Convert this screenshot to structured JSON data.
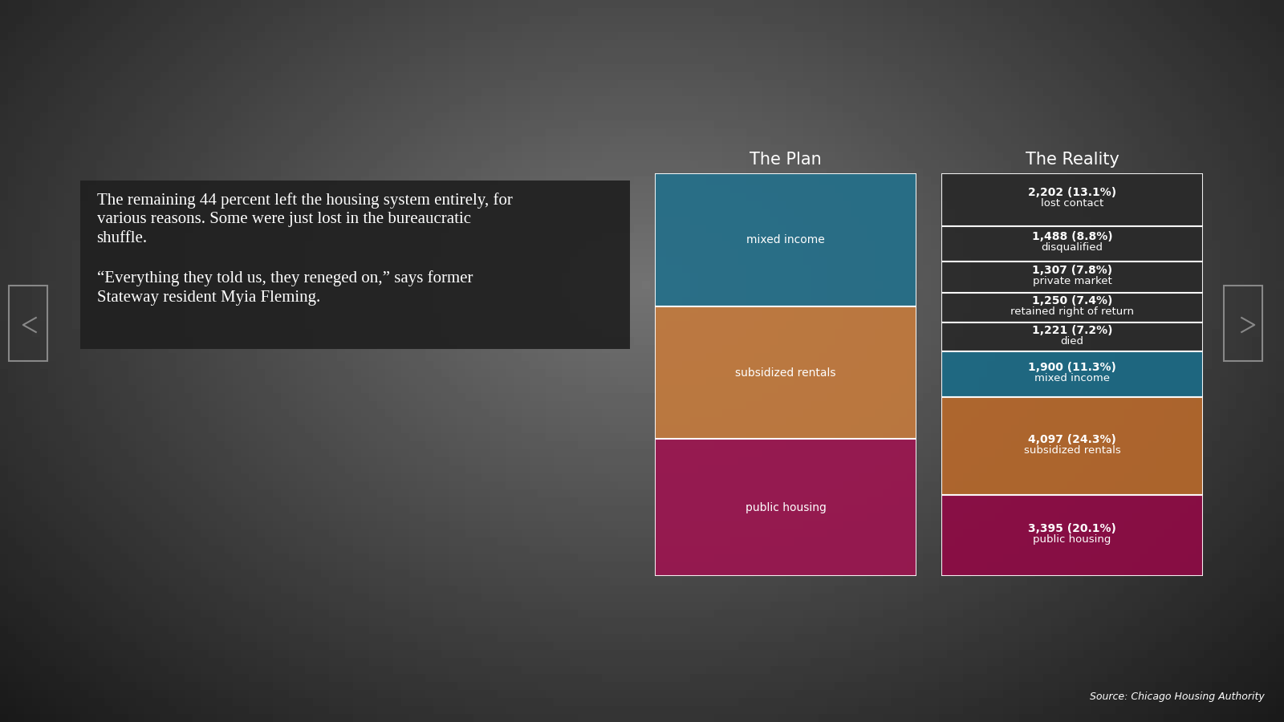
{
  "text_box": {
    "paragraphs": [
      "The remaining 44 percent left the housing system entirely, for various reasons. Some were just lost in the bureaucratic shuffle.",
      "“Everything they told us, they reneged on,” says former Stateway resident Myia Fleming."
    ]
  },
  "chart_data": [
    {
      "type": "bar",
      "stacked": true,
      "title": "The Plan",
      "categories": [
        "mixed income",
        "subsidized rentals",
        "public housing"
      ],
      "values": [
        33,
        33,
        34
      ],
      "colors": [
        "#256f89",
        "#c27a3e",
        "#9b1650"
      ],
      "ylim": [
        0,
        100
      ],
      "tick_labels": false,
      "data_labels": false
    },
    {
      "type": "bar",
      "stacked": true,
      "title": "The Reality",
      "categories": [
        "lost contact",
        "disqualified",
        "private market",
        "retained right of return",
        "died",
        "mixed income",
        "subsidized rentals",
        "public housing"
      ],
      "values": [
        2202,
        1488,
        1307,
        1250,
        1221,
        1900,
        4097,
        3395
      ],
      "value_labels": [
        "2,202 (13.1%)",
        "1,488 (8.8%)",
        "1,307 (7.8%)",
        "1,250 (7.4%)",
        "1,221 (7.2%)",
        "1,900 (11.3%)",
        "4,097 (24.3%)",
        "3,395 (20.1%)"
      ],
      "colors": [
        "#2a2a2a",
        "#2a2a2a",
        "#2a2a2a",
        "#2a2a2a",
        "#2a2a2a",
        "#1c6a85",
        "#b5682c",
        "#8e0b45"
      ],
      "ylim": [
        0,
        16860
      ],
      "tick_labels": false,
      "data_labels": true
    }
  ],
  "source": "Source: Chicago Housing Authority"
}
